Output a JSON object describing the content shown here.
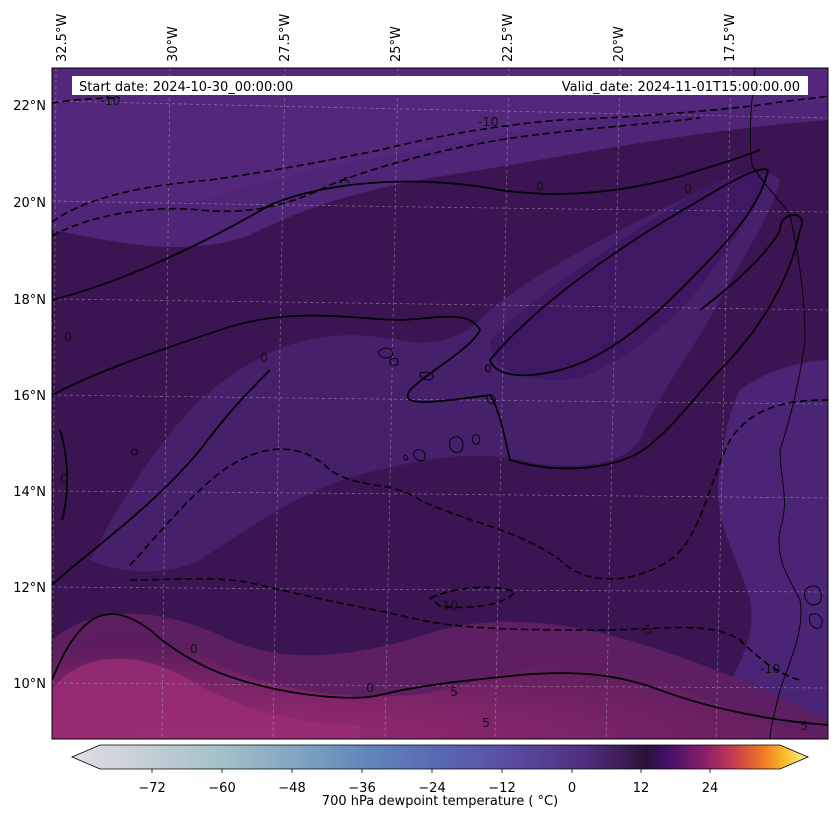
{
  "header": {
    "start_label": "Start date: 2024-10-30_00:00:00",
    "valid_label": "Valid_date: 2024-11-01T15:00:00.00"
  },
  "lon_labels": [
    "32.5°W",
    "30°W",
    "27.5°W",
    "25°W",
    "22.5°W",
    "20°W",
    "17.5°W"
  ],
  "lat_labels": [
    "22°N",
    "20°N",
    "18°N",
    "16°N",
    "14°N",
    "12°N",
    "10°N"
  ],
  "contour_labels": [
    "-10",
    "-10",
    "-5",
    "0",
    "0",
    "0",
    "0",
    "0",
    "-10",
    "-5",
    "0",
    "0",
    "5",
    "-10",
    "5",
    "5"
  ],
  "colorbar": {
    "label": "700 hPa dewpoint temperature ( °C)",
    "ticks": [
      "−72",
      "−60",
      "−48",
      "−36",
      "−24",
      "−12",
      "0",
      "12",
      "24"
    ],
    "range": [
      -84,
      36
    ],
    "colormap": "twilight-inferno"
  },
  "colors": {
    "field_dark": "#3a1552",
    "field_mid": "#4b1f6b",
    "field_warm": "#8a2a6e",
    "contour": "#000000"
  }
}
